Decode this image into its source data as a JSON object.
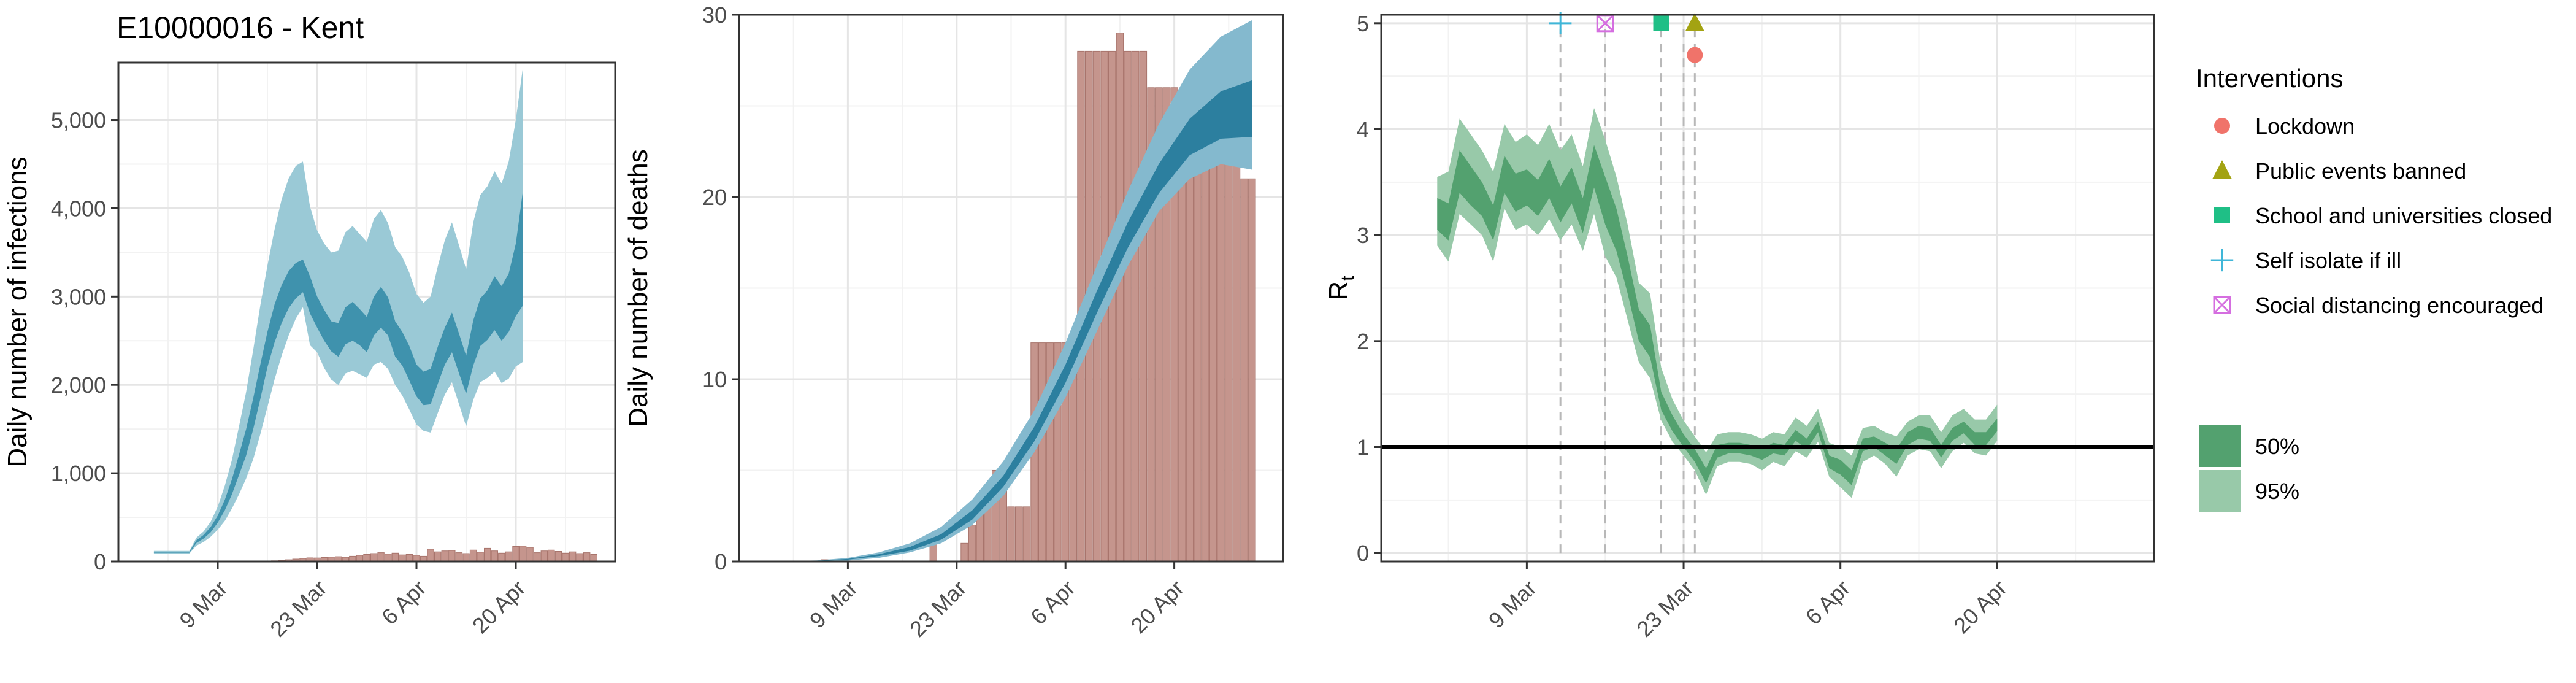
{
  "figure": {
    "title": "E10000016 - Kent",
    "colors": {
      "infection_ci95": "#9ac9d6",
      "infection_ci50": "#3f92ad",
      "death_ci95": "#84b9ce",
      "death_ci50": "#2c7f9f",
      "bar_fill": "#c5958d",
      "bar_edge": "#a8746c",
      "rt_ci95": "#98c9a9",
      "rt_ci50": "#53a16f",
      "reference_line": "#000000",
      "panel_border": "#333333",
      "grid_major": "#e5e5e5",
      "grid_minor": "#f2f2f2",
      "vline": "#b8b8b8"
    }
  },
  "chart_data": [
    {
      "id": "infections",
      "type": "area",
      "title": "E10000016 - Kent",
      "xlabel": "",
      "ylabel": "Daily number of infections",
      "x_is_dates": true,
      "xlim": [
        "2020-02-24",
        "2020-05-04"
      ],
      "ylim": [
        0,
        5650
      ],
      "yticks": [
        0,
        1000,
        2000,
        3000,
        4000,
        5000
      ],
      "ytick_labels": [
        "0",
        "1,000",
        "2,000",
        "3,000",
        "4,000",
        "5,000"
      ],
      "xticks": [
        "2020-03-09",
        "2020-03-23",
        "2020-04-06",
        "2020-04-20"
      ],
      "xtick_labels": [
        "9 Mar",
        "23 Mar",
        "6 Apr",
        "20 Apr"
      ],
      "start_date": "2020-02-29",
      "band95_lower": [
        90,
        90,
        90,
        90,
        90,
        90,
        180,
        220,
        280,
        360,
        460,
        600,
        760,
        940,
        1160,
        1440,
        1750,
        2060,
        2330,
        2560,
        2750,
        2880,
        2450,
        2370,
        2190,
        2060,
        2000,
        2130,
        2160,
        2120,
        2080,
        2230,
        2260,
        2180,
        2000,
        1880,
        1720,
        1550,
        1480,
        1460,
        1680,
        1890,
        2030,
        1780,
        1530,
        1830,
        2030,
        2080,
        2150,
        2020,
        2070,
        2210,
        2260
      ],
      "band50_lower": [
        100,
        100,
        100,
        100,
        100,
        100,
        210,
        260,
        330,
        440,
        580,
        760,
        980,
        1200,
        1500,
        1840,
        2200,
        2480,
        2700,
        2870,
        2980,
        3050,
        2810,
        2650,
        2500,
        2380,
        2320,
        2460,
        2500,
        2450,
        2370,
        2560,
        2650,
        2560,
        2320,
        2220,
        2050,
        1870,
        1770,
        1780,
        2010,
        2230,
        2370,
        2130,
        1900,
        2220,
        2440,
        2510,
        2620,
        2500,
        2600,
        2780,
        2900
      ],
      "band50_upper": [
        110,
        110,
        110,
        110,
        110,
        110,
        240,
        300,
        390,
        520,
        700,
        930,
        1210,
        1500,
        1850,
        2230,
        2600,
        2910,
        3130,
        3290,
        3380,
        3420,
        3230,
        3000,
        2850,
        2720,
        2700,
        2880,
        2940,
        2860,
        2770,
        3000,
        3110,
        2990,
        2720,
        2600,
        2440,
        2230,
        2150,
        2180,
        2430,
        2650,
        2820,
        2580,
        2330,
        2730,
        2980,
        3070,
        3230,
        3120,
        3260,
        3600,
        4200
      ],
      "band95_upper": [
        120,
        120,
        120,
        120,
        120,
        120,
        270,
        340,
        450,
        620,
        860,
        1150,
        1530,
        1920,
        2400,
        2900,
        3350,
        3760,
        4100,
        4340,
        4480,
        4530,
        4020,
        3750,
        3600,
        3500,
        3520,
        3730,
        3800,
        3710,
        3620,
        3880,
        3980,
        3830,
        3560,
        3450,
        3270,
        3030,
        2930,
        3000,
        3340,
        3640,
        3840,
        3580,
        3310,
        3840,
        4150,
        4250,
        4420,
        4280,
        4530,
        5000,
        5600
      ],
      "bars_x": [
        "2020-03-16",
        "2020-03-17",
        "2020-03-18",
        "2020-03-19",
        "2020-03-20",
        "2020-03-21",
        "2020-03-22",
        "2020-03-23",
        "2020-03-24",
        "2020-03-25",
        "2020-03-26",
        "2020-03-27",
        "2020-03-28",
        "2020-03-29",
        "2020-03-30",
        "2020-03-31",
        "2020-04-01",
        "2020-04-02",
        "2020-04-03",
        "2020-04-04",
        "2020-04-05",
        "2020-04-06",
        "2020-04-07",
        "2020-04-08",
        "2020-04-09",
        "2020-04-10",
        "2020-04-11",
        "2020-04-12",
        "2020-04-13",
        "2020-04-14",
        "2020-04-15",
        "2020-04-16",
        "2020-04-17",
        "2020-04-18",
        "2020-04-19",
        "2020-04-20",
        "2020-04-21",
        "2020-04-22",
        "2020-04-23",
        "2020-04-24",
        "2020-04-25",
        "2020-04-26",
        "2020-04-27",
        "2020-04-28",
        "2020-04-29",
        "2020-04-30",
        "2020-05-01"
      ],
      "bars_values": [
        5,
        8,
        12,
        20,
        28,
        35,
        42,
        40,
        45,
        50,
        55,
        48,
        60,
        70,
        80,
        90,
        100,
        85,
        95,
        75,
        80,
        70,
        60,
        140,
        110,
        120,
        125,
        100,
        90,
        130,
        105,
        150,
        120,
        95,
        110,
        170,
        175,
        160,
        100,
        120,
        130,
        115,
        95,
        110,
        90,
        100,
        80
      ]
    },
    {
      "id": "deaths",
      "type": "area",
      "xlabel": "",
      "ylabel": "Daily number of deaths",
      "x_is_dates": true,
      "xlim": [
        "2020-02-24",
        "2020-05-04"
      ],
      "ylim": [
        0,
        30
      ],
      "yticks": [
        0,
        10,
        20,
        30
      ],
      "ytick_labels": [
        "0",
        "10",
        "20",
        "30"
      ],
      "xticks": [
        "2020-03-09",
        "2020-03-23",
        "2020-04-06",
        "2020-04-20"
      ],
      "xtick_labels": [
        "9 Mar",
        "23 Mar",
        "6 Apr",
        "20 Apr"
      ],
      "band_x": [
        "2020-03-01",
        "2020-03-05",
        "2020-03-09",
        "2020-03-13",
        "2020-03-17",
        "2020-03-21",
        "2020-03-25",
        "2020-03-29",
        "2020-04-02",
        "2020-04-06",
        "2020-04-10",
        "2020-04-14",
        "2020-04-18",
        "2020-04-22",
        "2020-04-26",
        "2020-04-30"
      ],
      "band95_lower": [
        0.0,
        0.0,
        0.05,
        0.2,
        0.5,
        1.0,
        2.0,
        3.6,
        6.0,
        9.0,
        12.6,
        16.2,
        19.2,
        21.0,
        21.8,
        21.5
      ],
      "band50_lower": [
        0.0,
        0.02,
        0.1,
        0.3,
        0.6,
        1.2,
        2.3,
        4.1,
        6.6,
        9.8,
        13.6,
        17.2,
        20.2,
        22.3,
        23.2,
        23.3
      ],
      "band50_upper": [
        0.01,
        0.04,
        0.14,
        0.4,
        0.8,
        1.5,
        2.8,
        4.7,
        7.4,
        10.8,
        14.8,
        18.6,
        21.8,
        24.3,
        25.8,
        26.4
      ],
      "band95_upper": [
        0.02,
        0.06,
        0.2,
        0.5,
        1.0,
        1.9,
        3.4,
        5.5,
        8.3,
        12.0,
        16.2,
        20.3,
        24.0,
        27.0,
        28.8,
        29.7
      ],
      "bars_x": [
        "2020-03-06",
        "2020-03-20",
        "2020-03-24",
        "2020-03-25",
        "2020-03-26",
        "2020-03-27",
        "2020-03-28",
        "2020-03-29",
        "2020-03-30",
        "2020-03-31",
        "2020-04-01",
        "2020-04-02",
        "2020-04-03",
        "2020-04-04",
        "2020-04-05",
        "2020-04-06",
        "2020-04-07",
        "2020-04-08",
        "2020-04-09",
        "2020-04-10",
        "2020-04-11",
        "2020-04-12",
        "2020-04-13",
        "2020-04-14",
        "2020-04-15",
        "2020-04-16",
        "2020-04-17",
        "2020-04-18",
        "2020-04-19",
        "2020-04-20",
        "2020-04-21",
        "2020-04-22",
        "2020-04-23",
        "2020-04-24",
        "2020-04-25",
        "2020-04-26",
        "2020-04-27",
        "2020-04-28",
        "2020-04-29",
        "2020-04-30"
      ],
      "bars_values": [
        0.1,
        1.5,
        1,
        2,
        3,
        4,
        5,
        4,
        3,
        3,
        3,
        12,
        12,
        12,
        12,
        12,
        12,
        28,
        28,
        28,
        28,
        28,
        29,
        28,
        28,
        28,
        26,
        26,
        26,
        26,
        25,
        26,
        25,
        24,
        22,
        22,
        22,
        22,
        21,
        21
      ]
    },
    {
      "id": "rt",
      "type": "area",
      "xlabel": "",
      "ylabel": "R",
      "ylabel_subscript": "t",
      "x_is_dates": true,
      "xlim": [
        "2020-02-25",
        "2020-05-04"
      ],
      "ylim": [
        -0.08,
        5.08
      ],
      "yticks": [
        0,
        1,
        2,
        3,
        4,
        5
      ],
      "ytick_labels": [
        "0",
        "1",
        "2",
        "3",
        "4",
        "5"
      ],
      "xticks": [
        "2020-03-09",
        "2020-03-23",
        "2020-04-06",
        "2020-04-20"
      ],
      "xtick_labels": [
        "9 Mar",
        "23 Mar",
        "6 Apr",
        "20 Apr"
      ],
      "start_date": "2020-03-01",
      "band95_lower": [
        2.9,
        2.75,
        3.2,
        3.1,
        3.0,
        2.75,
        3.25,
        3.05,
        3.1,
        3.0,
        3.15,
        2.95,
        3.1,
        2.85,
        3.2,
        2.8,
        2.6,
        2.2,
        1.8,
        1.65,
        1.25,
        1.05,
        0.92,
        0.78,
        0.55,
        0.82,
        0.86,
        0.86,
        0.84,
        0.78,
        0.86,
        0.82,
        0.96,
        0.9,
        1.05,
        0.72,
        0.62,
        0.52,
        0.86,
        0.92,
        0.84,
        0.72,
        0.92,
        0.98,
        0.96,
        0.8,
        0.96,
        1.04,
        0.94,
        0.92,
        1.06
      ],
      "band50_lower": [
        3.05,
        2.95,
        3.4,
        3.28,
        3.18,
        2.95,
        3.4,
        3.22,
        3.28,
        3.18,
        3.35,
        3.12,
        3.3,
        3.02,
        3.45,
        3.1,
        2.85,
        2.45,
        2.0,
        1.85,
        1.35,
        1.15,
        1.0,
        0.86,
        0.66,
        0.9,
        0.94,
        0.94,
        0.92,
        0.88,
        0.94,
        0.92,
        1.06,
        0.98,
        1.14,
        0.8,
        0.74,
        0.64,
        0.96,
        1.0,
        0.92,
        0.84,
        1.02,
        1.08,
        1.06,
        0.9,
        1.06,
        1.13,
        1.02,
        1.02,
        1.15
      ],
      "band50_upper": [
        3.35,
        3.3,
        3.8,
        3.65,
        3.5,
        3.28,
        3.75,
        3.58,
        3.62,
        3.52,
        3.72,
        3.46,
        3.64,
        3.35,
        3.85,
        3.55,
        3.25,
        2.8,
        2.3,
        2.15,
        1.52,
        1.3,
        1.12,
        0.98,
        0.8,
        1.02,
        1.04,
        1.04,
        1.02,
        0.98,
        1.04,
        1.02,
        1.16,
        1.08,
        1.24,
        0.92,
        0.88,
        0.78,
        1.08,
        1.1,
        1.04,
        0.98,
        1.14,
        1.2,
        1.18,
        1.02,
        1.18,
        1.24,
        1.14,
        1.14,
        1.27
      ],
      "band95_upper": [
        3.55,
        3.6,
        4.1,
        3.95,
        3.8,
        3.6,
        4.05,
        3.88,
        3.95,
        3.85,
        4.05,
        3.8,
        3.95,
        3.65,
        4.2,
        3.9,
        3.55,
        3.1,
        2.55,
        2.45,
        1.75,
        1.45,
        1.25,
        1.1,
        0.95,
        1.12,
        1.14,
        1.14,
        1.12,
        1.08,
        1.14,
        1.12,
        1.28,
        1.2,
        1.36,
        1.04,
        1.0,
        0.92,
        1.18,
        1.2,
        1.14,
        1.1,
        1.24,
        1.3,
        1.3,
        1.14,
        1.3,
        1.36,
        1.26,
        1.26,
        1.4
      ],
      "reference_y": 1,
      "vlines": [
        "2020-03-12",
        "2020-03-16",
        "2020-03-21",
        "2020-03-23",
        "2020-03-24"
      ],
      "interventions": [
        {
          "name": "Self isolate if ill",
          "date": "2020-03-12",
          "y": 5.0,
          "marker": "plus",
          "color": "#3fb6d8"
        },
        {
          "name": "Social distancing encouraged",
          "date": "2020-03-16",
          "y": 5.0,
          "marker": "boxx",
          "color": "#d56ee0"
        },
        {
          "name": "School and universities closed",
          "date": "2020-03-21",
          "y": 5.0,
          "marker": "square",
          "color": "#1fbf86"
        },
        {
          "name": "Public events banned",
          "date": "2020-03-24",
          "y": 5.0,
          "marker": "triangle",
          "color": "#a3a312"
        },
        {
          "name": "Lockdown",
          "date": "2020-03-24",
          "y": 4.7,
          "marker": "circle",
          "color": "#f0736a"
        }
      ]
    }
  ],
  "legend": {
    "title": "Interventions",
    "items": [
      {
        "label": "Lockdown",
        "marker": "circle",
        "color": "#f0736a"
      },
      {
        "label": "Public events banned",
        "marker": "triangle",
        "color": "#a3a312"
      },
      {
        "label": "School and universities closed",
        "marker": "square",
        "color": "#1fbf86"
      },
      {
        "label": "Self isolate if ill",
        "marker": "plus",
        "color": "#3fb6d8"
      },
      {
        "label": "Social distancing encouraged",
        "marker": "boxx",
        "color": "#d56ee0"
      }
    ],
    "ci_items": [
      {
        "label": "50%",
        "color": "#53a16f"
      },
      {
        "label": "95%",
        "color": "#98c9a9"
      }
    ]
  }
}
